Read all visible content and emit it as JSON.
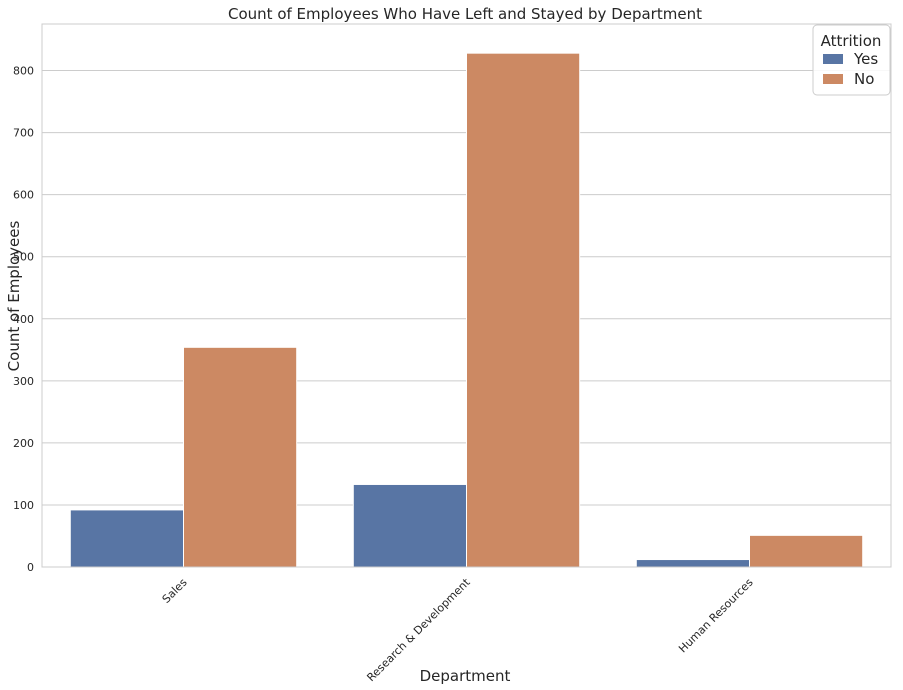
{
  "chart_data": {
    "type": "bar",
    "title": "Count of Employees Who Have Left and Stayed by Department",
    "xlabel": "Department",
    "ylabel": "Count of Employees",
    "categories": [
      "Sales",
      "Research & Development",
      "Human Resources"
    ],
    "series": [
      {
        "name": "Yes",
        "values": [
          92,
          133,
          12
        ],
        "color": "#5875a4"
      },
      {
        "name": "No",
        "values": [
          354,
          828,
          51
        ],
        "color": "#cc8963"
      }
    ],
    "ylim": [
      0,
      875
    ],
    "yticks": [
      0,
      100,
      200,
      300,
      400,
      500,
      600,
      700,
      800
    ],
    "grid": true,
    "legend": {
      "title": "Attrition",
      "position": "top-right"
    }
  }
}
